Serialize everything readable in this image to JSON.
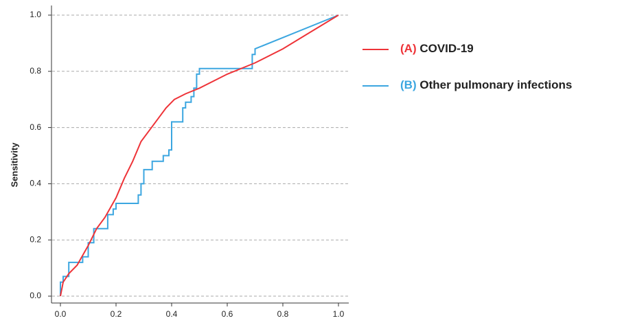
{
  "chart_data": {
    "type": "line",
    "y_label": "Sensitivity",
    "xlim": [
      0,
      1
    ],
    "ylim": [
      0,
      1
    ],
    "xticks": [
      {
        "value": 0,
        "label": "0.0"
      },
      0.2,
      0.4,
      0.6,
      0.8,
      {
        "value": 1,
        "label": "1.0"
      }
    ],
    "yticks": [
      {
        "value": 0,
        "label": "0.0"
      },
      0.2,
      0.4,
      0.6,
      0.8,
      {
        "value": 1,
        "label": "1.0"
      }
    ],
    "grid": true,
    "legend": "right",
    "series": [
      {
        "tag": "(A)",
        "name": "COVID-19",
        "color": "#ee3338",
        "x": [
          0,
          0.01,
          0.03,
          0.06,
          0.1,
          0.13,
          0.16,
          0.2,
          0.23,
          0.26,
          0.29,
          0.32,
          0.35,
          0.38,
          0.41,
          0.45,
          0.5,
          0.6,
          0.7,
          0.8,
          0.9,
          1
        ],
        "values": [
          0,
          0.05,
          0.08,
          0.11,
          0.18,
          0.24,
          0.28,
          0.35,
          0.42,
          0.48,
          0.55,
          0.59,
          0.63,
          0.67,
          0.7,
          0.72,
          0.74,
          0.79,
          0.83,
          0.88,
          0.94,
          1
        ]
      },
      {
        "tag": "(B)",
        "name": "Other pulmonary infections",
        "color": "#3ba6e0",
        "x": [
          0,
          0,
          0.01,
          0.01,
          0.03,
          0.03,
          0.08,
          0.08,
          0.1,
          0.1,
          0.12,
          0.12,
          0.17,
          0.17,
          0.19,
          0.19,
          0.2,
          0.2,
          0.28,
          0.28,
          0.29,
          0.29,
          0.3,
          0.3,
          0.33,
          0.33,
          0.37,
          0.37,
          0.39,
          0.39,
          0.4,
          0.4,
          0.44,
          0.44,
          0.45,
          0.45,
          0.47,
          0.47,
          0.48,
          0.48,
          0.49,
          0.49,
          0.5,
          0.5,
          0.69,
          0.69,
          0.7,
          0.7,
          1
        ],
        "values": [
          0,
          0.05,
          0.05,
          0.07,
          0.07,
          0.12,
          0.12,
          0.14,
          0.14,
          0.19,
          0.19,
          0.24,
          0.24,
          0.29,
          0.29,
          0.31,
          0.31,
          0.33,
          0.33,
          0.36,
          0.36,
          0.4,
          0.4,
          0.45,
          0.45,
          0.48,
          0.48,
          0.5,
          0.5,
          0.52,
          0.52,
          0.62,
          0.62,
          0.67,
          0.67,
          0.69,
          0.69,
          0.71,
          0.71,
          0.74,
          0.74,
          0.79,
          0.79,
          0.81,
          0.81,
          0.86,
          0.86,
          0.88,
          1
        ]
      }
    ]
  }
}
